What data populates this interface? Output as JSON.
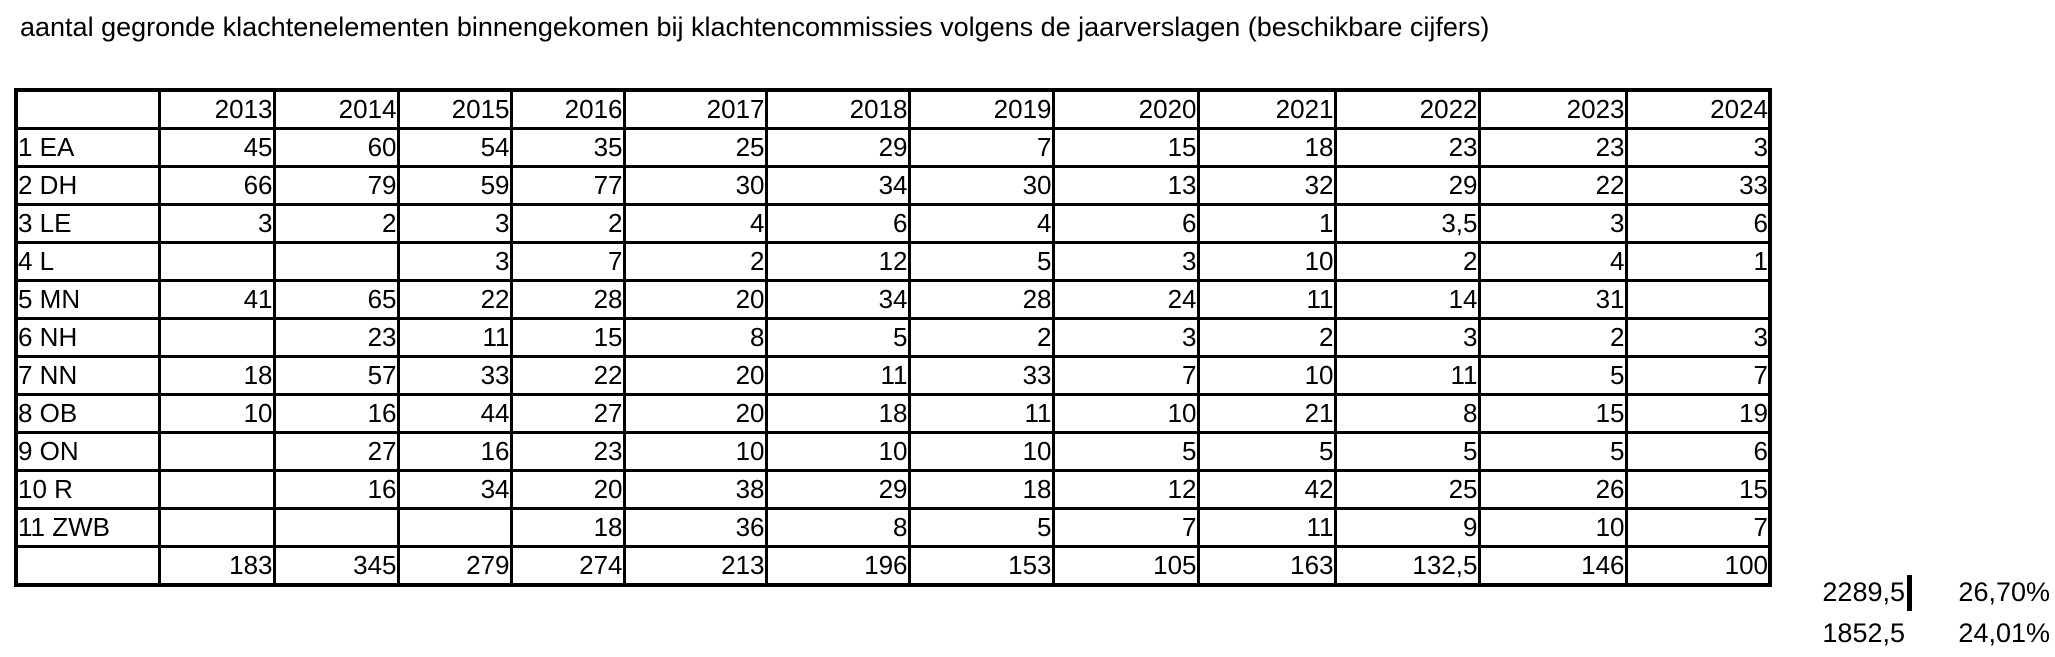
{
  "title": "aantal gegronde klachtenelementen binnengekomen bij klachtencommissies volgens de jaarverslagen (beschikbare cijfers)",
  "table": {
    "years": [
      "2013",
      "2014",
      "2015",
      "2016",
      "2017",
      "2018",
      "2019",
      "2020",
      "2021",
      "2022",
      "2023",
      "2024"
    ],
    "rows": [
      {
        "label": "1 EA",
        "values": [
          "45",
          "60",
          "54",
          "35",
          "25",
          "29",
          "7",
          "15",
          "18",
          "23",
          "23",
          "3"
        ]
      },
      {
        "label": "2 DH",
        "values": [
          "66",
          "79",
          "59",
          "77",
          "30",
          "34",
          "30",
          "13",
          "32",
          "29",
          "22",
          "33"
        ]
      },
      {
        "label": "3 LE",
        "values": [
          "3",
          "2",
          "3",
          "2",
          "4",
          "6",
          "4",
          "6",
          "1",
          "3,5",
          "3",
          "6"
        ]
      },
      {
        "label": "4 L",
        "values": [
          "",
          "",
          "3",
          "7",
          "2",
          "12",
          "5",
          "3",
          "10",
          "2",
          "4",
          "1"
        ]
      },
      {
        "label": "5 MN",
        "values": [
          "41",
          "65",
          "22",
          "28",
          "20",
          "34",
          "28",
          "24",
          "11",
          "14",
          "31",
          ""
        ]
      },
      {
        "label": "6 NH",
        "values": [
          "",
          "23",
          "11",
          "15",
          "8",
          "5",
          "2",
          "3",
          "2",
          "3",
          "2",
          "3"
        ]
      },
      {
        "label": "7 NN",
        "values": [
          "18",
          "57",
          "33",
          "22",
          "20",
          "11",
          "33",
          "7",
          "10",
          "11",
          "5",
          "7"
        ]
      },
      {
        "label": "8 OB",
        "values": [
          "10",
          "16",
          "44",
          "27",
          "20",
          "18",
          "11",
          "10",
          "21",
          "8",
          "15",
          "19"
        ]
      },
      {
        "label": "9 ON",
        "values": [
          "",
          "27",
          "16",
          "23",
          "10",
          "10",
          "10",
          "5",
          "5",
          "5",
          "5",
          "6"
        ]
      },
      {
        "label": "10 R",
        "values": [
          "",
          "16",
          "34",
          "20",
          "38",
          "29",
          "18",
          "12",
          "42",
          "25",
          "26",
          "15"
        ]
      },
      {
        "label": "11 ZWB",
        "values": [
          "",
          "",
          "",
          "18",
          "36",
          "8",
          "5",
          "7",
          "11",
          "9",
          "10",
          "7"
        ]
      }
    ],
    "totals": {
      "label": "",
      "values": [
        "183",
        "345",
        "279",
        "274",
        "213",
        "196",
        "153",
        "105",
        "163",
        "132,5",
        "146",
        "100"
      ]
    }
  },
  "summary": {
    "rows": [
      {
        "value": "2289,5",
        "percent": "26,70%",
        "cursor": true
      },
      {
        "value": "1852,5",
        "percent": "24,01%",
        "cursor": false
      }
    ]
  }
}
